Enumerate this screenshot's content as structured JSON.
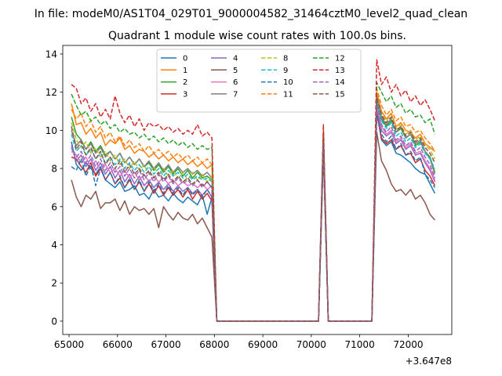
{
  "chart_data": {
    "type": "line",
    "suptitle": "In file: modeM0/AS1T04_029T01_9000004582_31464cztM0_level2_quad_clean",
    "title": "Quadrant 1 module wise count rates with 100.0s bins.",
    "xlabel": "",
    "ylabel": "",
    "x_offset_text": "+3.647e8",
    "xlim": [
      64870,
      72900
    ],
    "ylim": [
      -0.7,
      14.45
    ],
    "xticks": [
      65000,
      66000,
      67000,
      68000,
      69000,
      70000,
      71000,
      72000
    ],
    "yticks": [
      0,
      2,
      4,
      6,
      8,
      10,
      12,
      14
    ],
    "grid": false,
    "legend_position": "top-center",
    "legend_columns": 4,
    "segments": [
      {
        "start": 65050,
        "n": 30
      },
      {
        "start": 68050,
        "n": 22
      },
      {
        "start": 70250,
        "n": 2
      },
      {
        "start": 70450,
        "n": 9
      },
      {
        "start": 71350,
        "n": 13
      }
    ],
    "series": [
      {
        "name": "0",
        "color": "#1f77b4",
        "dash": false,
        "seg1": [
          9.4,
          8.2,
          7.9,
          8.3,
          8.0,
          7.7,
          8.1,
          7.4,
          7.2,
          7.0,
          7.3,
          6.8,
          6.9,
          7.1,
          6.6,
          6.7,
          6.4,
          6.9,
          6.5,
          6.6,
          6.3,
          6.7,
          6.4,
          6.2,
          6.5,
          6.3,
          6.1,
          6.6,
          5.6,
          6.5
        ],
        "spike": [
          9.1,
          0
        ],
        "seg3": [
          11.0,
          9.5,
          9.2,
          9.4,
          8.8,
          8.7,
          8.5,
          8.3,
          8.0,
          7.8,
          7.7,
          7.2,
          6.7
        ]
      },
      {
        "name": "1",
        "color": "#ff7f0e",
        "dash": false,
        "seg1": [
          11.4,
          10.3,
          10.4,
          9.8,
          10.1,
          9.6,
          9.9,
          9.2,
          9.5,
          9.3,
          9.6,
          9.0,
          9.2,
          8.8,
          9.0,
          8.9,
          8.6,
          8.8,
          8.5,
          8.7,
          8.4,
          8.6,
          8.3,
          8.5,
          8.2,
          8.4,
          8.1,
          8.3,
          8.0,
          8.2
        ],
        "spike": [
          9.5,
          0
        ],
        "seg3": [
          12.0,
          11.0,
          10.6,
          10.9,
          10.2,
          10.4,
          10.0,
          9.9,
          9.6,
          9.8,
          9.3,
          9.1,
          8.9
        ]
      },
      {
        "name": "2",
        "color": "#2ca02c",
        "dash": false,
        "seg1": [
          10.7,
          9.8,
          9.5,
          9.0,
          9.4,
          8.9,
          9.2,
          8.7,
          8.9,
          8.5,
          8.8,
          8.3,
          8.6,
          8.2,
          8.5,
          8.1,
          8.3,
          7.9,
          8.2,
          7.8,
          8.1,
          7.7,
          8.0,
          7.6,
          7.9,
          7.5,
          7.8,
          7.5,
          7.6,
          7.4
        ],
        "spike": [
          9.3,
          0
        ],
        "seg3": [
          11.6,
          10.6,
          10.2,
          10.5,
          9.9,
          10.1,
          9.6,
          9.8,
          9.2,
          9.4,
          8.9,
          8.6,
          7.8
        ]
      },
      {
        "name": "3",
        "color": "#d62728",
        "dash": false,
        "seg1": [
          8.6,
          8.5,
          8.1,
          7.8,
          8.3,
          7.6,
          8.0,
          7.4,
          7.8,
          7.2,
          7.5,
          7.0,
          7.4,
          6.9,
          7.3,
          6.8,
          7.2,
          6.7,
          7.1,
          6.6,
          7.0,
          6.6,
          6.9,
          6.5,
          6.9,
          6.4,
          6.8,
          6.4,
          6.7,
          6.3
        ],
        "spike": [
          9.8,
          0
        ],
        "seg3": [
          10.9,
          9.6,
          9.3,
          9.5,
          9.0,
          9.2,
          8.7,
          8.8,
          8.3,
          8.5,
          7.9,
          7.6,
          7.1
        ]
      },
      {
        "name": "4",
        "color": "#9467bd",
        "dash": false,
        "seg1": [
          9.1,
          8.4,
          8.7,
          8.1,
          8.5,
          7.9,
          8.3,
          7.7,
          8.1,
          7.5,
          7.9,
          7.3,
          7.7,
          7.2,
          7.6,
          7.1,
          7.4,
          7.0,
          7.3,
          6.9,
          7.2,
          6.8,
          7.1,
          6.8,
          7.0,
          6.7,
          6.9,
          6.6,
          6.9,
          6.5
        ],
        "spike": [
          9.6,
          0
        ],
        "seg3": [
          11.2,
          10.0,
          9.7,
          9.9,
          9.3,
          9.5,
          9.0,
          9.2,
          8.7,
          8.8,
          8.3,
          7.9,
          7.3
        ]
      },
      {
        "name": "5",
        "color": "#8c564b",
        "dash": false,
        "seg1": [
          7.4,
          6.5,
          6.0,
          6.6,
          6.4,
          6.8,
          5.9,
          6.2,
          6.2,
          6.4,
          5.8,
          6.3,
          5.6,
          6.0,
          5.8,
          5.9,
          5.6,
          5.9,
          4.9,
          6.0,
          5.6,
          5.3,
          5.7,
          5.4,
          5.3,
          5.6,
          5.1,
          5.4,
          4.9,
          4.4
        ],
        "spike": [
          8.8,
          0
        ],
        "seg3": [
          9.9,
          8.4,
          7.9,
          7.2,
          6.8,
          6.9,
          6.6,
          6.9,
          6.4,
          6.6,
          6.2,
          5.6,
          5.3
        ]
      },
      {
        "name": "6",
        "color": "#e377c2",
        "dash": false,
        "seg1": [
          8.9,
          8.7,
          8.3,
          8.6,
          8.1,
          8.4,
          7.9,
          8.2,
          7.8,
          8.0,
          7.6,
          7.9,
          7.5,
          7.8,
          7.4,
          7.7,
          7.3,
          7.6,
          7.3,
          7.5,
          7.2,
          7.4,
          7.1,
          7.3,
          7.1,
          7.2,
          7.0,
          7.2,
          6.9,
          7.1
        ],
        "spike": [
          9.7,
          0
        ],
        "seg3": [
          11.3,
          10.2,
          9.8,
          10.0,
          9.4,
          9.6,
          9.1,
          9.3,
          8.8,
          8.9,
          8.4,
          8.0,
          7.4
        ]
      },
      {
        "name": "7",
        "color": "#7f7f7f",
        "dash": false,
        "seg1": [
          10.0,
          9.2,
          9.5,
          9.0,
          9.3,
          8.8,
          9.1,
          8.6,
          8.9,
          8.5,
          8.8,
          8.3,
          8.6,
          8.2,
          8.5,
          8.1,
          8.4,
          8.0,
          8.3,
          7.9,
          8.2,
          7.8,
          8.1,
          7.8,
          8.0,
          7.7,
          7.9,
          7.6,
          7.8,
          7.5
        ],
        "spike": [
          9.9,
          0
        ],
        "seg3": [
          11.7,
          10.7,
          10.3,
          10.6,
          9.9,
          10.2,
          9.6,
          9.8,
          9.3,
          9.5,
          8.9,
          8.5,
          7.7
        ]
      },
      {
        "name": "8",
        "color": "#bcbd22",
        "dash": true,
        "seg1": [
          10.4,
          9.5,
          9.1,
          9.4,
          8.8,
          9.1,
          8.6,
          8.9,
          8.4,
          8.7,
          8.2,
          8.5,
          8.0,
          8.4,
          7.9,
          8.2,
          7.7,
          8.1,
          7.6,
          8.0,
          7.6,
          7.9,
          7.5,
          7.8,
          7.4,
          7.8,
          7.4,
          7.7,
          7.3,
          7.6
        ],
        "spike": [
          9.4,
          0
        ],
        "seg3": [
          11.9,
          10.9,
          10.5,
          10.8,
          10.1,
          10.3,
          9.8,
          10.0,
          9.5,
          9.7,
          9.2,
          9.0,
          8.5
        ]
      },
      {
        "name": "9",
        "color": "#17becf",
        "dash": true,
        "seg1": [
          9.8,
          8.9,
          9.2,
          8.7,
          9.0,
          8.5,
          8.8,
          8.3,
          8.6,
          8.2,
          8.5,
          8.0,
          8.3,
          7.9,
          8.2,
          7.8,
          8.1,
          7.7,
          8.0,
          7.6,
          7.9,
          7.6,
          7.8,
          7.5,
          7.7,
          7.4,
          7.6,
          7.4,
          7.5,
          7.3
        ],
        "spike": [
          9.2,
          0
        ],
        "seg3": [
          11.5,
          10.5,
          10.1,
          10.4,
          9.7,
          9.9,
          9.4,
          9.6,
          9.1,
          9.3,
          8.8,
          8.5,
          8.0
        ]
      },
      {
        "name": "10",
        "color": "#1f77b4",
        "dash": true,
        "seg1": [
          8.1,
          7.9,
          8.5,
          7.6,
          8.2,
          7.1,
          8.0,
          7.4,
          7.8,
          7.2,
          7.6,
          7.0,
          7.5,
          6.9,
          7.4,
          6.8,
          7.3,
          6.8,
          7.2,
          6.7,
          7.1,
          6.7,
          7.0,
          6.6,
          7.0,
          6.6,
          6.9,
          6.5,
          6.9,
          6.5
        ],
        "spike": [
          9.0,
          0
        ],
        "seg3": [
          10.8,
          9.8,
          9.4,
          9.7,
          9.0,
          9.3,
          8.7,
          8.9,
          8.4,
          8.6,
          7.7,
          7.4,
          7.0
        ]
      },
      {
        "name": "11",
        "color": "#ff7f0e",
        "dash": true,
        "seg1": [
          11.1,
          10.6,
          10.9,
          10.2,
          10.5,
          9.9,
          10.2,
          9.6,
          9.9,
          9.4,
          9.7,
          9.2,
          9.5,
          9.1,
          9.3,
          8.9,
          9.2,
          8.8,
          9.0,
          8.7,
          8.9,
          8.6,
          8.8,
          8.5,
          8.7,
          8.4,
          8.6,
          8.3,
          8.5,
          8.2
        ],
        "spike": [
          9.6,
          0
        ],
        "seg3": [
          12.2,
          11.3,
          10.8,
          11.1,
          10.5,
          10.7,
          10.2,
          10.3,
          9.9,
          10.0,
          9.6,
          9.3,
          8.9
        ]
      },
      {
        "name": "12",
        "color": "#2ca02c",
        "dash": true,
        "seg1": [
          11.9,
          11.3,
          10.8,
          11.0,
          10.5,
          10.7,
          10.3,
          10.5,
          10.1,
          10.3,
          9.9,
          10.1,
          9.8,
          9.9,
          9.6,
          9.8,
          9.5,
          9.7,
          9.4,
          9.6,
          9.3,
          9.5,
          9.2,
          9.4,
          9.1,
          9.3,
          9.0,
          9.2,
          9.0,
          9.1
        ],
        "spike": [
          9.9,
          0
        ],
        "seg3": [
          12.5,
          12.0,
          11.5,
          11.8,
          11.2,
          11.4,
          10.9,
          11.1,
          10.7,
          10.8,
          10.4,
          10.6,
          9.8
        ]
      },
      {
        "name": "13",
        "color": "#d62728",
        "dash": true,
        "seg1": [
          12.4,
          12.2,
          11.4,
          11.7,
          11.0,
          11.4,
          10.7,
          11.1,
          10.6,
          11.8,
          10.9,
          10.4,
          10.8,
          10.2,
          10.6,
          10.0,
          10.4,
          10.2,
          10.3,
          10.0,
          10.2,
          9.9,
          10.1,
          9.8,
          10.0,
          9.8,
          10.3,
          9.7,
          9.9,
          9.6
        ],
        "spike": [
          10.3,
          0
        ],
        "seg3": [
          13.7,
          12.4,
          12.8,
          12.0,
          12.4,
          11.8,
          12.1,
          11.5,
          11.8,
          11.3,
          11.6,
          11.1,
          10.5
        ]
      },
      {
        "name": "14",
        "color": "#9467bd",
        "dash": true,
        "seg1": [
          9.2,
          8.6,
          8.9,
          8.3,
          8.7,
          8.1,
          8.5,
          7.9,
          8.3,
          7.8,
          8.1,
          7.6,
          8.0,
          7.5,
          7.9,
          7.4,
          7.8,
          7.3,
          7.7,
          7.3,
          7.6,
          7.2,
          7.5,
          7.2,
          7.4,
          7.1,
          7.4,
          7.0,
          7.3,
          7.0
        ],
        "spike": [
          9.3,
          0
        ],
        "seg3": [
          11.4,
          10.3,
          9.9,
          10.2,
          9.5,
          9.7,
          9.2,
          9.4,
          8.9,
          9.1,
          8.6,
          8.2,
          7.5
        ]
      },
      {
        "name": "15",
        "color": "#8c564b",
        "dash": true,
        "seg1": [
          10.2,
          9.0,
          9.4,
          8.7,
          9.1,
          8.5,
          8.9,
          8.2,
          8.6,
          8.0,
          8.4,
          7.8,
          8.2,
          7.7,
          8.0,
          7.6,
          7.9,
          7.5,
          7.8,
          7.4,
          7.7,
          7.3,
          7.6,
          7.3,
          7.5,
          7.2,
          7.4,
          7.1,
          7.3,
          7.0
        ],
        "spike": [
          9.5,
          0
        ],
        "seg3": [
          11.8,
          10.8,
          10.4,
          10.7,
          10.0,
          10.2,
          9.7,
          9.9,
          9.4,
          9.6,
          9.1,
          8.8,
          8.3
        ]
      }
    ]
  }
}
